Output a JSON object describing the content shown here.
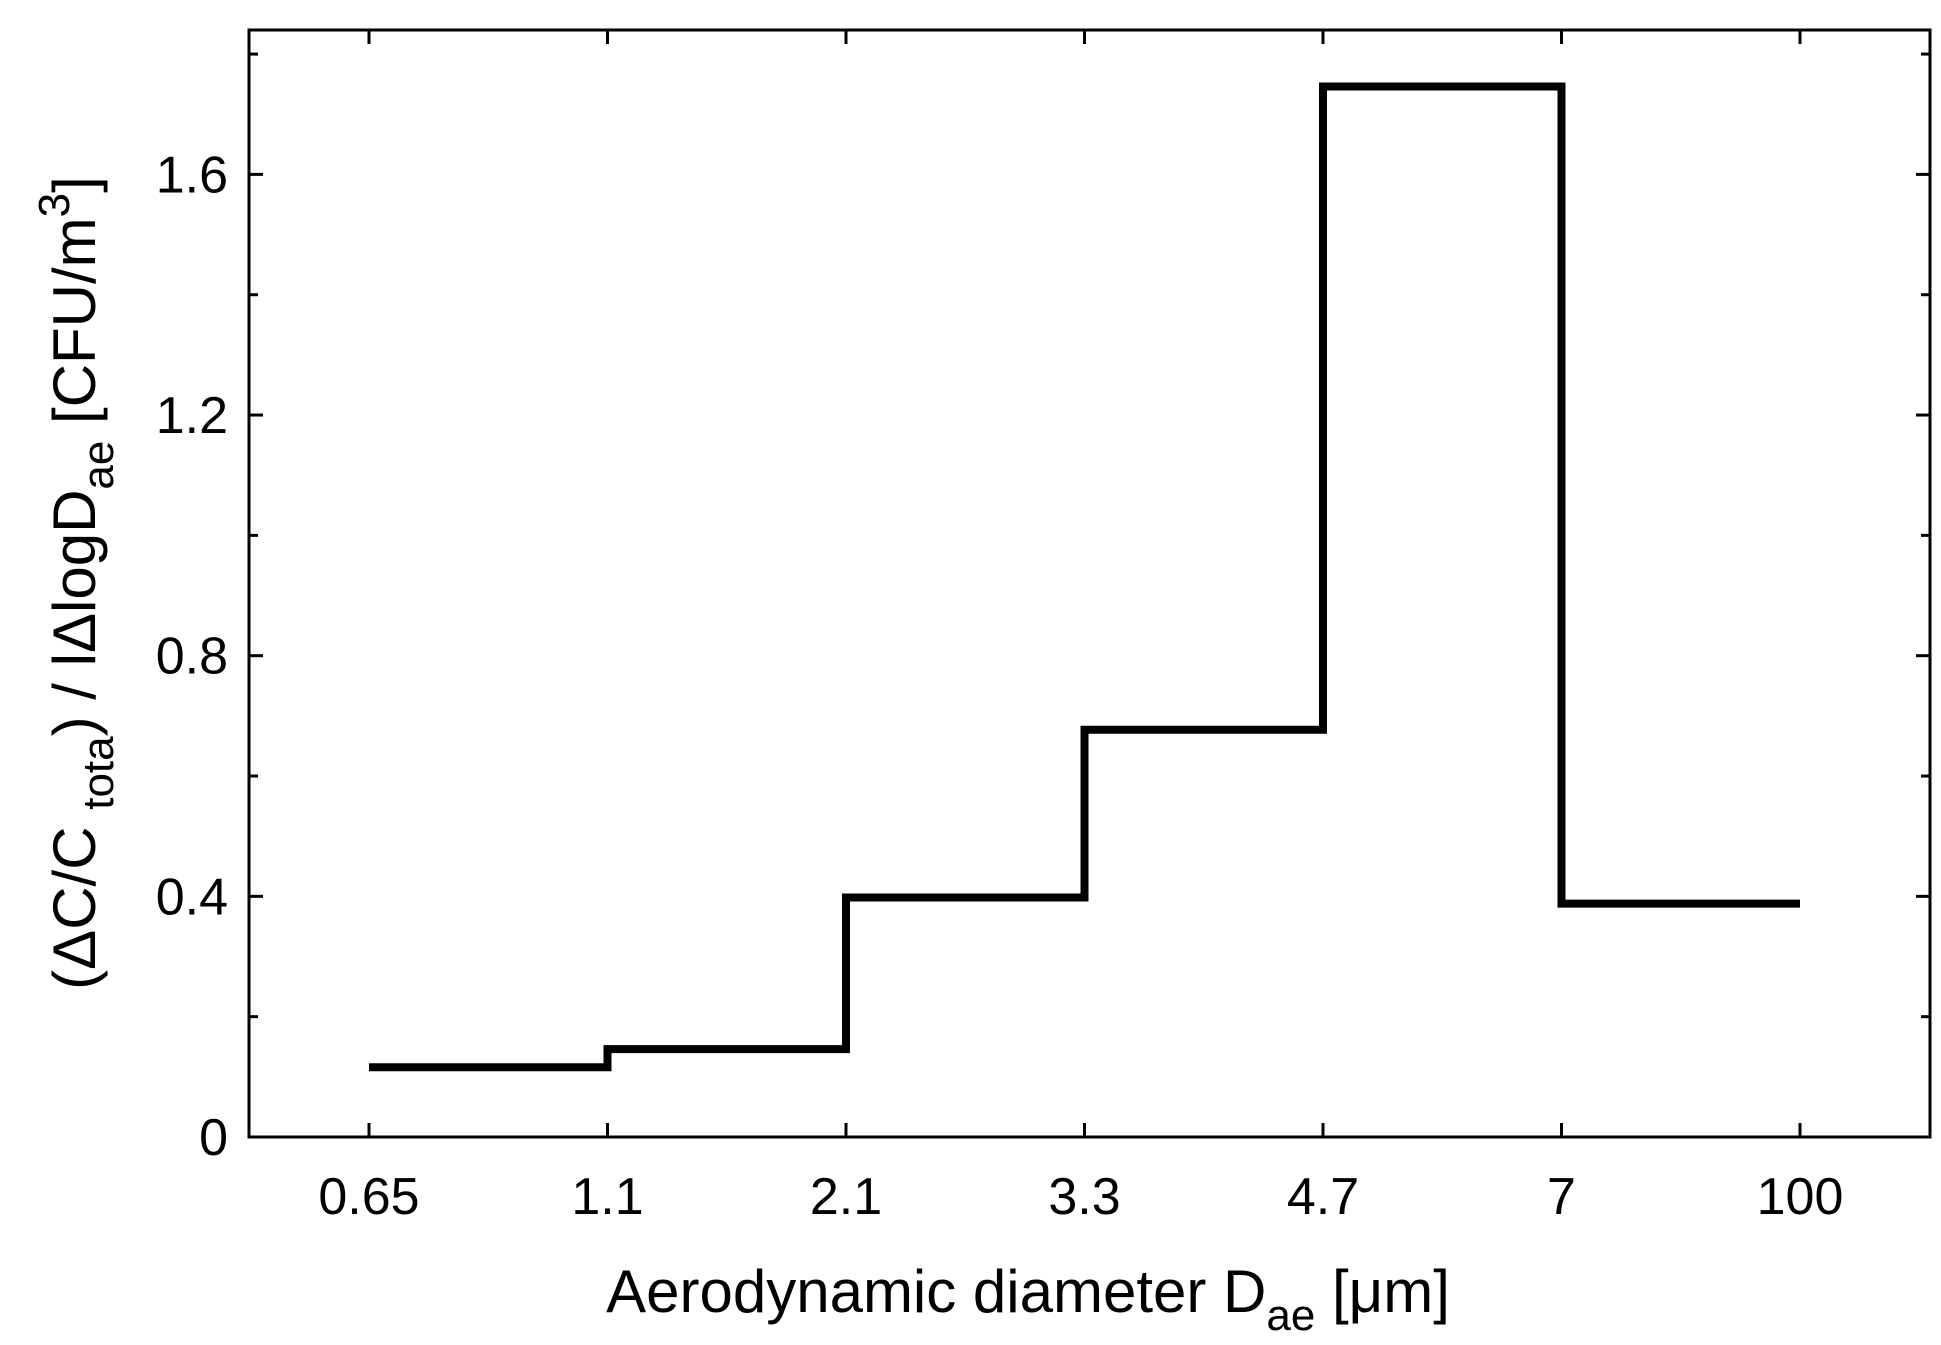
{
  "chart_data": {
    "type": "line",
    "subtype": "step",
    "categories": [
      "0.65",
      "1.1",
      "2.1",
      "3.3",
      "4.7",
      "7",
      "100"
    ],
    "bins": [
      {
        "from": "0.65",
        "to": "1.1",
        "value": 0.116
      },
      {
        "from": "1.1",
        "to": "2.1",
        "value": 0.146
      },
      {
        "from": "2.1",
        "to": "3.3",
        "value": 0.398
      },
      {
        "from": "3.3",
        "to": "4.7",
        "value": 0.677
      },
      {
        "from": "4.7",
        "to": "7",
        "value": 1.746
      },
      {
        "from": "7",
        "to": "100",
        "value": 0.388
      }
    ],
    "ylim": [
      0,
      1.84
    ],
    "y_major_ticks": [
      0,
      0.4,
      0.8,
      1.2,
      1.6
    ],
    "y_tick_labels": [
      "0",
      "0.4",
      "0.8",
      "1.2",
      "1.6"
    ],
    "y_minor_ticks": [
      0.2,
      0.6,
      1.0,
      1.4,
      1.8
    ],
    "xlabel": {
      "main": "Aerodynamic diameter D",
      "sub": "ae",
      "tail": " [μm]"
    },
    "ylabel": {
      "part1": "(ΔC/C ",
      "sub1": "tota",
      "part2": ") / lΔlogD",
      "sub2": "ae",
      "part3": " [CFU/m",
      "sup": "3",
      "part4": "]"
    },
    "grid": false,
    "legend": "none",
    "line_color": "#000000"
  }
}
